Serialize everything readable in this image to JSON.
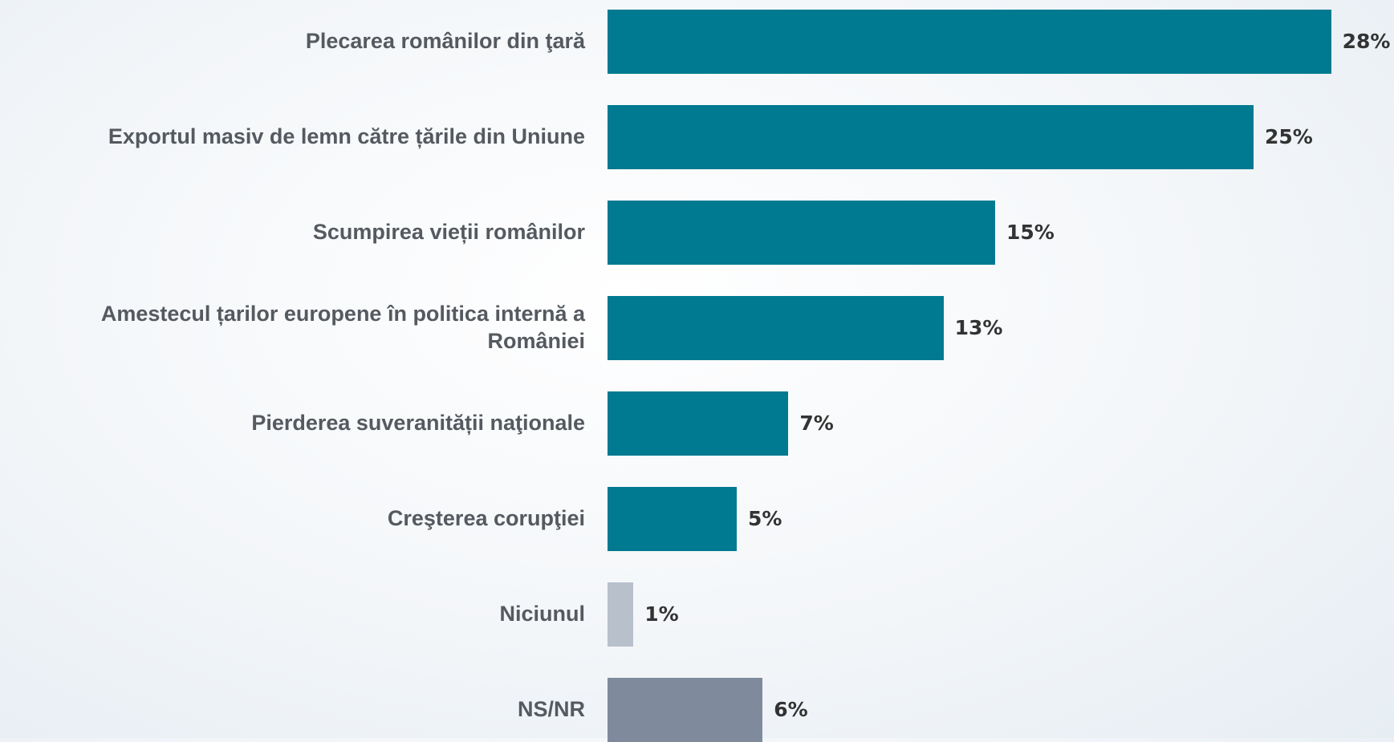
{
  "chart_data": {
    "type": "bar",
    "orientation": "horizontal",
    "categories": [
      "Plecarea românilor din ţară",
      "Exportul masiv de lemn către țările din Uniune",
      "Scumpirea vieții românilor",
      "Amestecul țarilor europene în politica internă a României",
      "Pierderea suveranității naţionale",
      "Creşterea corupţiei",
      "Niciunul",
      "NS/NR"
    ],
    "values": [
      28,
      25,
      15,
      13,
      7,
      5,
      1,
      6
    ],
    "value_labels": [
      "28%",
      "25%",
      "15%",
      "13%",
      "7%",
      "5%",
      "1%",
      "6%"
    ],
    "colors": [
      "#007a91",
      "#007a91",
      "#007a91",
      "#007a91",
      "#007a91",
      "#007a91",
      "#b8c0cc",
      "#7f8a9c"
    ]
  }
}
